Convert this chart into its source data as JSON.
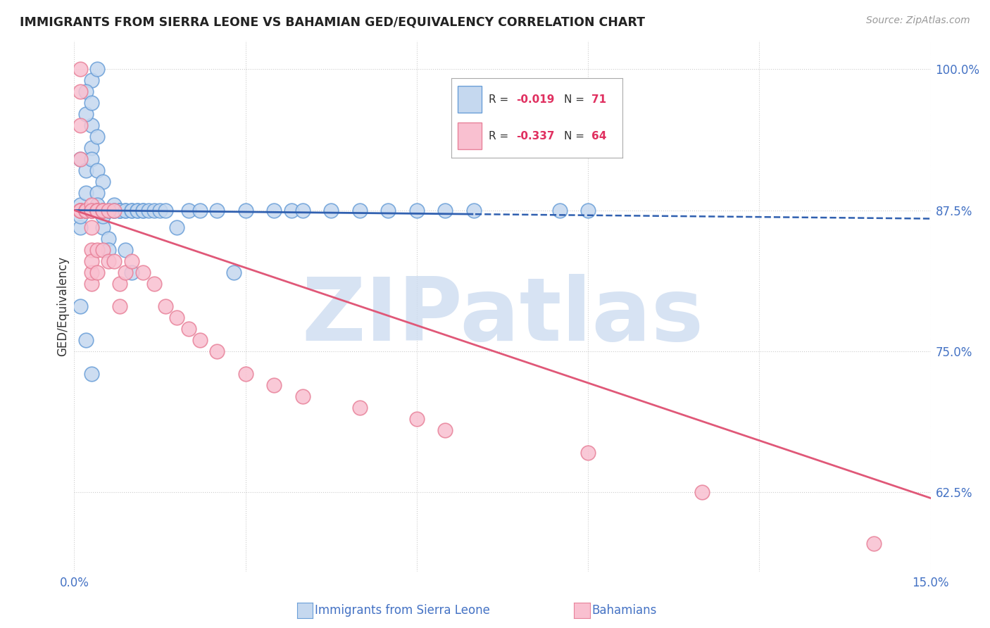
{
  "title": "IMMIGRANTS FROM SIERRA LEONE VS BAHAMIAN GED/EQUIVALENCY CORRELATION CHART",
  "source": "Source: ZipAtlas.com",
  "ylabel": "GED/Equivalency",
  "xlim": [
    0.0,
    0.15
  ],
  "ylim": [
    0.555,
    1.025
  ],
  "xtick_positions": [
    0.0,
    0.03,
    0.06,
    0.09,
    0.12,
    0.15
  ],
  "yticks_right": [
    0.625,
    0.75,
    0.875,
    1.0
  ],
  "yticklabels_right": [
    "62.5%",
    "75.0%",
    "87.5%",
    "100.0%"
  ],
  "color_blue_fill": "#c5d8ef",
  "color_blue_edge": "#6a9fd8",
  "color_pink_fill": "#f9c0d0",
  "color_pink_edge": "#e8829a",
  "color_blue_line": "#3060b0",
  "color_pink_line": "#e05878",
  "color_axis_text": "#4472c4",
  "color_grid": "#cccccc",
  "watermark_text": "ZIPatlas",
  "watermark_color": "#cddcf0",
  "background_color": "#ffffff",
  "sl_x": [
    0.001,
    0.002,
    0.001,
    0.003,
    0.001,
    0.002,
    0.001,
    0.002,
    0.003,
    0.001,
    0.002,
    0.003,
    0.004,
    0.002,
    0.003,
    0.004,
    0.003,
    0.004,
    0.005,
    0.004,
    0.005,
    0.004,
    0.005,
    0.006,
    0.005,
    0.006,
    0.005,
    0.006,
    0.007,
    0.006,
    0.007,
    0.006,
    0.007,
    0.008,
    0.007,
    0.008,
    0.009,
    0.008,
    0.009,
    0.01,
    0.009,
    0.01,
    0.01,
    0.011,
    0.011,
    0.012,
    0.012,
    0.013,
    0.014,
    0.015,
    0.016,
    0.018,
    0.02,
    0.022,
    0.025,
    0.028,
    0.03,
    0.035,
    0.038,
    0.04,
    0.045,
    0.05,
    0.055,
    0.06,
    0.065,
    0.07,
    0.085,
    0.09,
    0.001,
    0.002,
    0.003
  ],
  "sl_y": [
    0.875,
    0.875,
    0.92,
    0.95,
    0.88,
    0.91,
    0.86,
    0.89,
    0.93,
    0.87,
    0.96,
    0.99,
    1.0,
    0.98,
    0.97,
    0.94,
    0.92,
    0.91,
    0.9,
    0.89,
    0.875,
    0.88,
    0.86,
    0.85,
    0.875,
    0.875,
    0.87,
    0.84,
    0.875,
    0.875,
    0.875,
    0.875,
    0.88,
    0.875,
    0.875,
    0.875,
    0.875,
    0.875,
    0.875,
    0.875,
    0.84,
    0.82,
    0.875,
    0.875,
    0.875,
    0.875,
    0.875,
    0.875,
    0.875,
    0.875,
    0.875,
    0.86,
    0.875,
    0.875,
    0.875,
    0.82,
    0.875,
    0.875,
    0.875,
    0.875,
    0.875,
    0.875,
    0.875,
    0.875,
    0.875,
    0.875,
    0.875,
    0.875,
    0.79,
    0.76,
    0.73
  ],
  "bah_x": [
    0.001,
    0.001,
    0.001,
    0.001,
    0.001,
    0.001,
    0.001,
    0.001,
    0.001,
    0.001,
    0.002,
    0.002,
    0.002,
    0.002,
    0.002,
    0.002,
    0.002,
    0.002,
    0.002,
    0.002,
    0.003,
    0.003,
    0.003,
    0.003,
    0.003,
    0.003,
    0.003,
    0.003,
    0.003,
    0.003,
    0.004,
    0.004,
    0.004,
    0.004,
    0.004,
    0.004,
    0.005,
    0.005,
    0.005,
    0.005,
    0.006,
    0.006,
    0.007,
    0.007,
    0.008,
    0.008,
    0.009,
    0.01,
    0.012,
    0.014,
    0.016,
    0.018,
    0.02,
    0.022,
    0.025,
    0.03,
    0.035,
    0.04,
    0.05,
    0.06,
    0.065,
    0.09,
    0.11,
    0.14
  ],
  "bah_y": [
    0.875,
    0.875,
    0.875,
    0.875,
    0.875,
    0.875,
    0.92,
    0.95,
    0.98,
    1.0,
    0.875,
    0.875,
    0.875,
    0.875,
    0.875,
    0.875,
    0.875,
    0.875,
    0.875,
    0.875,
    0.875,
    0.875,
    0.875,
    0.84,
    0.81,
    0.82,
    0.83,
    0.86,
    0.88,
    0.875,
    0.875,
    0.875,
    0.875,
    0.84,
    0.82,
    0.875,
    0.875,
    0.875,
    0.84,
    0.875,
    0.875,
    0.83,
    0.875,
    0.83,
    0.81,
    0.79,
    0.82,
    0.83,
    0.82,
    0.81,
    0.79,
    0.78,
    0.77,
    0.76,
    0.75,
    0.73,
    0.72,
    0.71,
    0.7,
    0.69,
    0.68,
    0.66,
    0.625,
    0.58
  ]
}
